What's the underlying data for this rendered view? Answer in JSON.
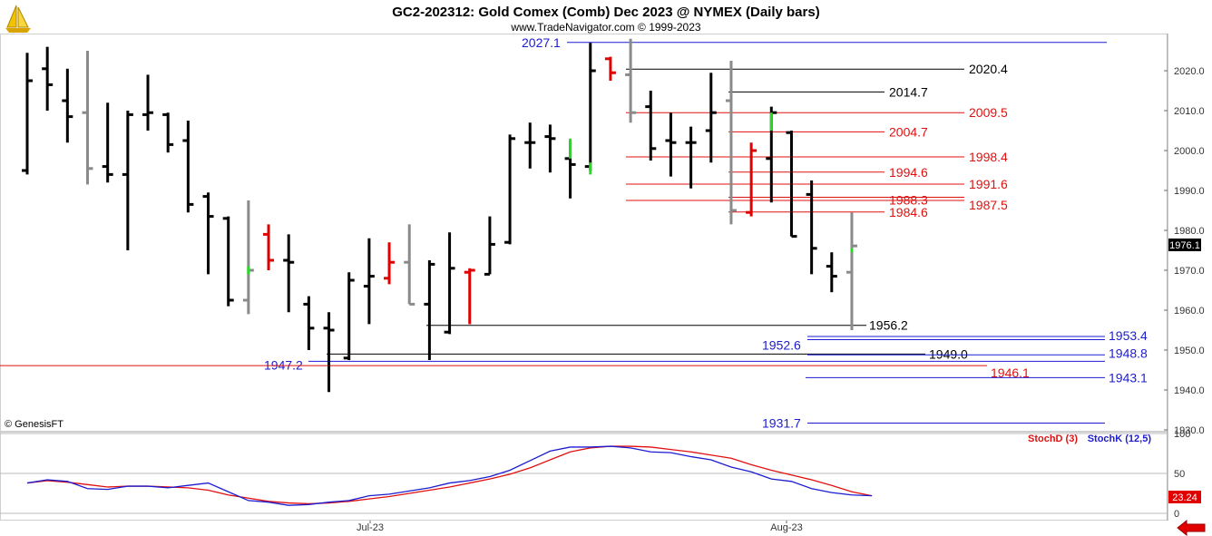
{
  "header": {
    "title": "GC2-202312:  Gold Comex (Comb) Dec 2023 @ NYMEX  (Daily bars)",
    "subtitle": "www.TradeNavigator.com © 1999-2023",
    "copyright": "© GenesisFT",
    "logo_icon": "dollar-sailboat-logo-icon",
    "nav_icon": "red-left-arrow-icon"
  },
  "colors": {
    "up_bar": "#000000",
    "down_bar": "#8a8a8a",
    "red_bar": "#e00000",
    "green_tick": "#22dd22",
    "blue": "#1c1cd0",
    "red": "#e01010",
    "stoch_d": "#e01010",
    "stoch_k": "#1c1cd0"
  },
  "price_badge": "1976.1",
  "stoch_badge": "23.24",
  "chart_data": [
    {
      "type": "ohlc",
      "title": "GC2-202312:  Gold Comex (Comb) Dec 2023 @ NYMEX  (Daily bars)",
      "ylim": [
        1930,
        2030
      ],
      "yticks": [
        "2020.0",
        "2010.0",
        "2000.0",
        "1990.0",
        "1980.0",
        "1970.0",
        "1960.0",
        "1950.0",
        "1940.0",
        "1930.0"
      ],
      "xticks": [
        "Jul-23",
        "Aug-23"
      ],
      "bars": [
        {
          "o": 1995,
          "h": 2024.5,
          "l": 1994,
          "c": 2017.5,
          "col": "k"
        },
        {
          "o": 2020.5,
          "h": 2026,
          "l": 2010,
          "c": 2016.5,
          "col": "k"
        },
        {
          "o": 2012.5,
          "h": 2020.5,
          "l": 2002,
          "c": 2008.5,
          "col": "k"
        },
        {
          "o": 2009.5,
          "h": 2025,
          "l": 1991.5,
          "c": 1995.5,
          "col": "g"
        },
        {
          "o": 1996,
          "h": 2012,
          "l": 1992,
          "c": 1994,
          "col": "k"
        },
        {
          "o": 1994,
          "h": 2010,
          "l": 1975,
          "c": 2009,
          "col": "k"
        },
        {
          "o": 2009,
          "h": 2019,
          "l": 2005,
          "c": 2009.5,
          "col": "k"
        },
        {
          "o": 2009,
          "h": 2009.5,
          "l": 1999.5,
          "c": 2001.5,
          "col": "k"
        },
        {
          "o": 2002.5,
          "h": 2007.5,
          "l": 1984.5,
          "c": 1986.5,
          "col": "k"
        },
        {
          "o": 1988.5,
          "h": 1989.5,
          "l": 1969,
          "c": 1983.5,
          "col": "k"
        },
        {
          "o": 1983,
          "h": 1983.5,
          "l": 1961,
          "c": 1962.5,
          "col": "k"
        },
        {
          "o": 1962.5,
          "h": 1987.5,
          "l": 1959,
          "c": 1970,
          "col": "g"
        },
        {
          "o": 1979,
          "h": 1981.5,
          "l": 1970,
          "c": 1972.5,
          "col": "r"
        },
        {
          "o": 1972.5,
          "h": 1979,
          "l": 1959.5,
          "c": 1972,
          "col": "k"
        },
        {
          "o": 1961.5,
          "h": 1963.5,
          "l": 1950,
          "c": 1955.5,
          "col": "k"
        },
        {
          "o": 1955.5,
          "h": 1959.5,
          "l": 1939.5,
          "c": 1955,
          "col": "k"
        },
        {
          "o": 1948,
          "h": 1969.5,
          "l": 1947.5,
          "c": 1967.5,
          "col": "k"
        },
        {
          "o": 1966,
          "h": 1978,
          "l": 1956.5,
          "c": 1968.5,
          "col": "k"
        },
        {
          "o": 1968,
          "h": 1977,
          "l": 1966.5,
          "c": 1972,
          "col": "r"
        },
        {
          "o": 1972,
          "h": 1981.5,
          "l": 1961.5,
          "c": 1961.5,
          "col": "g"
        },
        {
          "o": 1961.5,
          "h": 1972.5,
          "l": 1947.5,
          "c": 1971.5,
          "col": "k"
        },
        {
          "o": 1954.5,
          "h": 1979.5,
          "l": 1954,
          "c": 1970.5,
          "col": "k"
        },
        {
          "o": 1969.5,
          "h": 1970.5,
          "l": 1956.5,
          "c": 1970,
          "col": "r"
        },
        {
          "o": 1969,
          "h": 1983.5,
          "l": 1969,
          "c": 1976.5,
          "col": "k"
        },
        {
          "o": 1977,
          "h": 2004,
          "l": 1976.5,
          "c": 2003,
          "col": "k"
        },
        {
          "o": 2002,
          "h": 2007,
          "l": 1995.5,
          "c": 2002,
          "col": "k"
        },
        {
          "o": 2003.5,
          "h": 2006.5,
          "l": 1994.5,
          "c": 2003,
          "col": "k"
        },
        {
          "o": 1998,
          "h": 2002.5,
          "l": 1988,
          "c": 1996.5,
          "col": "k"
        },
        {
          "o": 1996,
          "h": 2027,
          "l": 1995,
          "c": 2020,
          "col": "k"
        },
        {
          "o": 2023,
          "h": 2023.5,
          "l": 2017.5,
          "c": 2019.5,
          "col": "r"
        },
        {
          "o": 2019,
          "h": 2028,
          "l": 2007,
          "c": 2009.5,
          "col": "g"
        },
        {
          "o": 2011,
          "h": 2015,
          "l": 1997.5,
          "c": 2000.5,
          "col": "k"
        },
        {
          "o": 2002.5,
          "h": 2009.5,
          "l": 1993.5,
          "c": 2002,
          "col": "k"
        },
        {
          "o": 2002,
          "h": 2006,
          "l": 1990.5,
          "c": 2002,
          "col": "k"
        },
        {
          "o": 2005,
          "h": 2019.5,
          "l": 1997,
          "c": 2009.5,
          "col": "k"
        },
        {
          "o": 2012.5,
          "h": 2022.5,
          "l": 1981.5,
          "c": 1985,
          "col": "g"
        },
        {
          "o": 1984.5,
          "h": 2002,
          "l": 1983.5,
          "c": 2000,
          "col": "r"
        },
        {
          "o": 1998,
          "h": 2011,
          "l": 1987,
          "c": 2009.5,
          "col": "k"
        },
        {
          "o": 2004.5,
          "h": 2005,
          "l": 1978.5,
          "c": 1978.5,
          "col": "k"
        },
        {
          "o": 1989,
          "h": 1992.5,
          "l": 1969,
          "c": 1975.5,
          "col": "k"
        },
        {
          "o": 1971,
          "h": 1974.5,
          "l": 1964.5,
          "c": 1968.5,
          "col": "k"
        },
        {
          "o": 1969.5,
          "h": 1984.5,
          "l": 1955,
          "c": 1976.1,
          "col": "g"
        }
      ],
      "levels": [
        {
          "value": 2027.1,
          "label": "2027.1",
          "color": "blue",
          "label_side": "left"
        },
        {
          "value": 2020.4,
          "label": "2020.4",
          "color": "black",
          "label_side": "right"
        },
        {
          "value": 2014.7,
          "label": "2014.7",
          "color": "black",
          "label_side": "right"
        },
        {
          "value": 2009.5,
          "label": "2009.5",
          "color": "red",
          "label_side": "right"
        },
        {
          "value": 2004.7,
          "label": "2004.7",
          "color": "red",
          "label_side": "right"
        },
        {
          "value": 1998.4,
          "label": "1998.4",
          "color": "red",
          "label_side": "right"
        },
        {
          "value": 1994.6,
          "label": "1994.6",
          "color": "red",
          "label_side": "right"
        },
        {
          "value": 1991.6,
          "label": "1991.6",
          "color": "red",
          "label_side": "right"
        },
        {
          "value": 1988.3,
          "label": "1988.3",
          "color": "red",
          "label_side": "right"
        },
        {
          "value": 1987.5,
          "label": "1987.5",
          "color": "red",
          "label_side": "right"
        },
        {
          "value": 1984.6,
          "label": "1984.6",
          "color": "red",
          "label_side": "right"
        },
        {
          "value": 1956.2,
          "label": "1956.2",
          "color": "black",
          "label_side": "right"
        },
        {
          "value": 1953.4,
          "label": "1953.4",
          "color": "blue",
          "label_side": "right"
        },
        {
          "value": 1952.6,
          "label": "1952.6",
          "color": "blue",
          "label_side": "left"
        },
        {
          "value": 1949.0,
          "label": "1949.0",
          "color": "black",
          "label_side": "right"
        },
        {
          "value": 1948.8,
          "label": "1948.8",
          "color": "blue",
          "label_side": "right"
        },
        {
          "value": 1947.2,
          "label": "1947.2",
          "color": "blue",
          "label_side": "left"
        },
        {
          "value": 1946.1,
          "label": "1946.1",
          "color": "red",
          "label_side": "right"
        },
        {
          "value": 1943.1,
          "label": "1943.1",
          "color": "blue",
          "label_side": "right"
        },
        {
          "value": 1931.7,
          "label": "1931.7",
          "color": "blue",
          "label_side": "left"
        }
      ]
    },
    {
      "type": "line",
      "ylim": [
        0,
        100
      ],
      "yticks": [
        "100",
        "50",
        "0"
      ],
      "series": [
        {
          "name": "StochD (3)",
          "color": "red",
          "values": [
            38,
            41,
            39,
            36,
            33,
            34,
            34,
            33,
            32,
            29,
            23,
            19,
            15,
            13,
            12,
            13,
            15,
            18,
            21,
            25,
            29,
            33,
            38,
            43,
            49,
            57,
            67,
            77,
            82,
            84,
            84,
            83,
            80,
            77,
            73,
            69,
            61,
            54,
            48,
            42,
            35,
            27,
            22
          ]
        },
        {
          "name": "StochK (12,5)",
          "color": "blue",
          "values": [
            38,
            42,
            40,
            31,
            30,
            34,
            34,
            32,
            35,
            38,
            27,
            16,
            14,
            10,
            11,
            14,
            16,
            22,
            24,
            28,
            32,
            38,
            41,
            46,
            54,
            66,
            78,
            83,
            83,
            84,
            82,
            77,
            76,
            71,
            67,
            58,
            52,
            43,
            40,
            31,
            26,
            23,
            22
          ]
        }
      ]
    }
  ]
}
